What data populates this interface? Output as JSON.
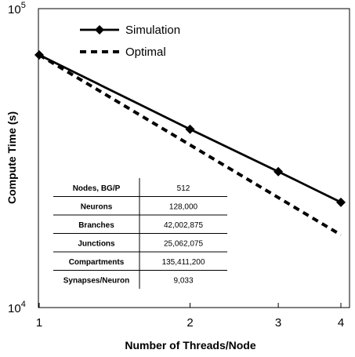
{
  "chart_data": {
    "type": "line",
    "xlabel": "Number of Threads/Node",
    "ylabel": "Compute Time (s)",
    "xscale": "log",
    "yscale": "log",
    "xlim": [
      1,
      4
    ],
    "ylim": [
      10000,
      100000
    ],
    "x_ticks": [
      "1",
      "2",
      "3",
      "4"
    ],
    "y_ticks": [
      {
        "value": 10000,
        "base": "10",
        "exp": "4"
      },
      {
        "value": 100000,
        "base": "10",
        "exp": "5"
      }
    ],
    "grid": false,
    "legend_position": "top-left",
    "series": [
      {
        "name": "Simulation",
        "style": "solid",
        "marker": "diamond",
        "x": [
          1,
          2,
          3,
          4
        ],
        "y": [
          70000,
          39500,
          28500,
          22500
        ]
      },
      {
        "name": "Optimal",
        "style": "dashed",
        "marker": "none",
        "x": [
          1,
          2,
          3,
          4
        ],
        "y": [
          70000,
          35000,
          23333,
          17500
        ]
      }
    ],
    "table": [
      {
        "label": "Nodes, BG/P",
        "value": "512"
      },
      {
        "label": "Neurons",
        "value": "128,000"
      },
      {
        "label": "Branches",
        "value": "42,002,875"
      },
      {
        "label": "Junctions",
        "value": "25,062,075"
      },
      {
        "label": "Compartments",
        "value": "135,411,200"
      },
      {
        "label": "Synapses/Neuron",
        "value": "9,033"
      }
    ],
    "colors": {
      "line": "#000000",
      "background": "#ffffff"
    }
  }
}
